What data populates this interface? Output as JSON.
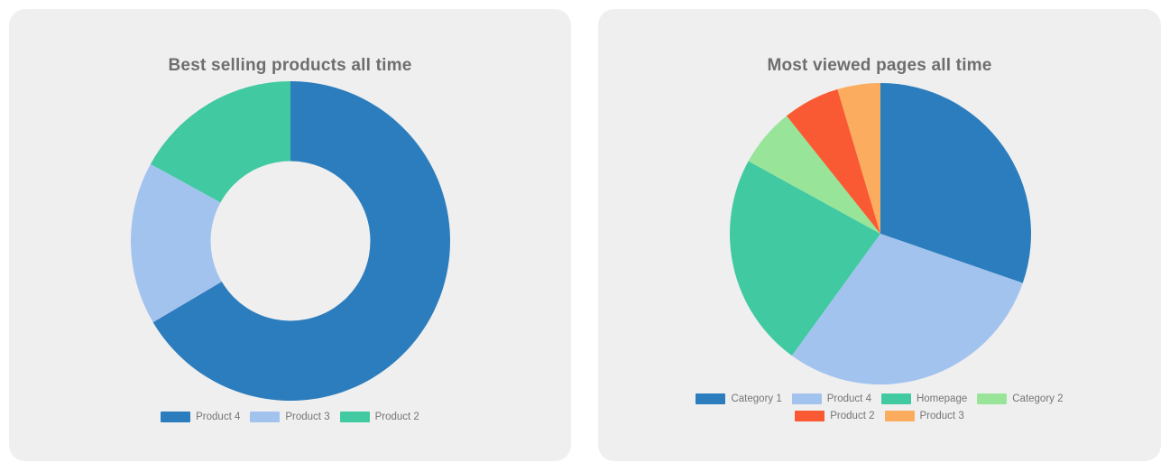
{
  "page": {
    "background_color": "#ffffff",
    "card_background_color": "#efefef",
    "title_color": "#6e6e6e",
    "legend_text_color": "#757575"
  },
  "chart_data": [
    {
      "type": "pie",
      "subtype": "doughnut",
      "title": "Best selling products all time",
      "labels": [
        "Product 4",
        "Product 3",
        "Product 2"
      ],
      "values_percent": [
        66.5,
        16.5,
        17.0
      ],
      "colors": [
        "#2c7dbd",
        "#a3c3ef",
        "#41c9a2"
      ],
      "start_angle_deg": 0,
      "direction": "clockwise",
      "cutout_percent": 50,
      "legend_position": "bottom",
      "legend_rows": [
        3
      ]
    },
    {
      "type": "pie",
      "subtype": "pie",
      "title": "Most viewed pages all time",
      "labels": [
        "Category 1",
        "Product 4",
        "Homepage",
        "Category 2",
        "Product 2",
        "Product 3"
      ],
      "values_percent": [
        30.3,
        29.7,
        23.0,
        6.3,
        6.1,
        4.6
      ],
      "colors": [
        "#2c7dbd",
        "#a3c3ef",
        "#41c9a2",
        "#98e59a",
        "#fa5a33",
        "#fbac5e"
      ],
      "start_angle_deg": 0,
      "direction": "clockwise",
      "cutout_percent": 0,
      "legend_position": "bottom",
      "legend_rows": [
        4,
        2
      ]
    }
  ]
}
